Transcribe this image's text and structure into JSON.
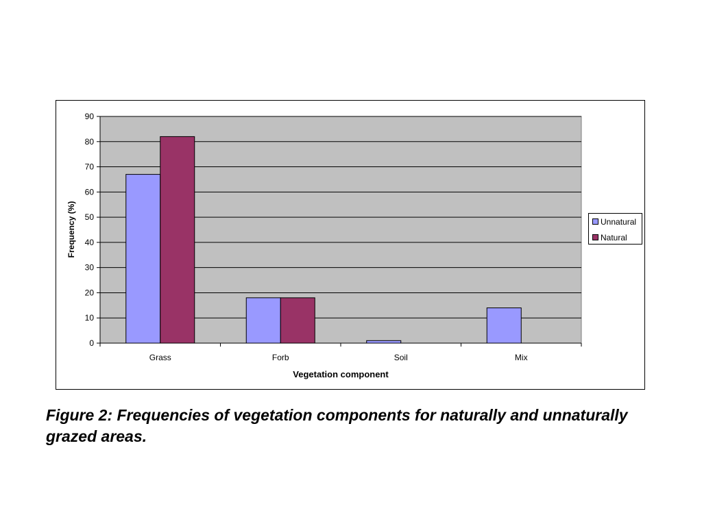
{
  "chart_data": {
    "type": "bar",
    "categories": [
      "Grass",
      "Forb",
      "Soil",
      "Mix"
    ],
    "series": [
      {
        "name": "Unnatural",
        "values": [
          67,
          18,
          1,
          14
        ],
        "color": "#9999ff"
      },
      {
        "name": "Natural",
        "values": [
          82,
          18,
          0,
          0
        ],
        "color": "#993366"
      }
    ],
    "xlabel": "Vegetation component",
    "ylabel": "Frequency (%)",
    "ylim": [
      0,
      90
    ],
    "yticks": [
      0,
      10,
      20,
      30,
      40,
      50,
      60,
      70,
      80,
      90
    ],
    "grid": true,
    "legend": "right",
    "plot_background": "#c0c0c0"
  },
  "caption": "Figure 2: Frequencies of vegetation components for naturally and unnaturally grazed areas."
}
